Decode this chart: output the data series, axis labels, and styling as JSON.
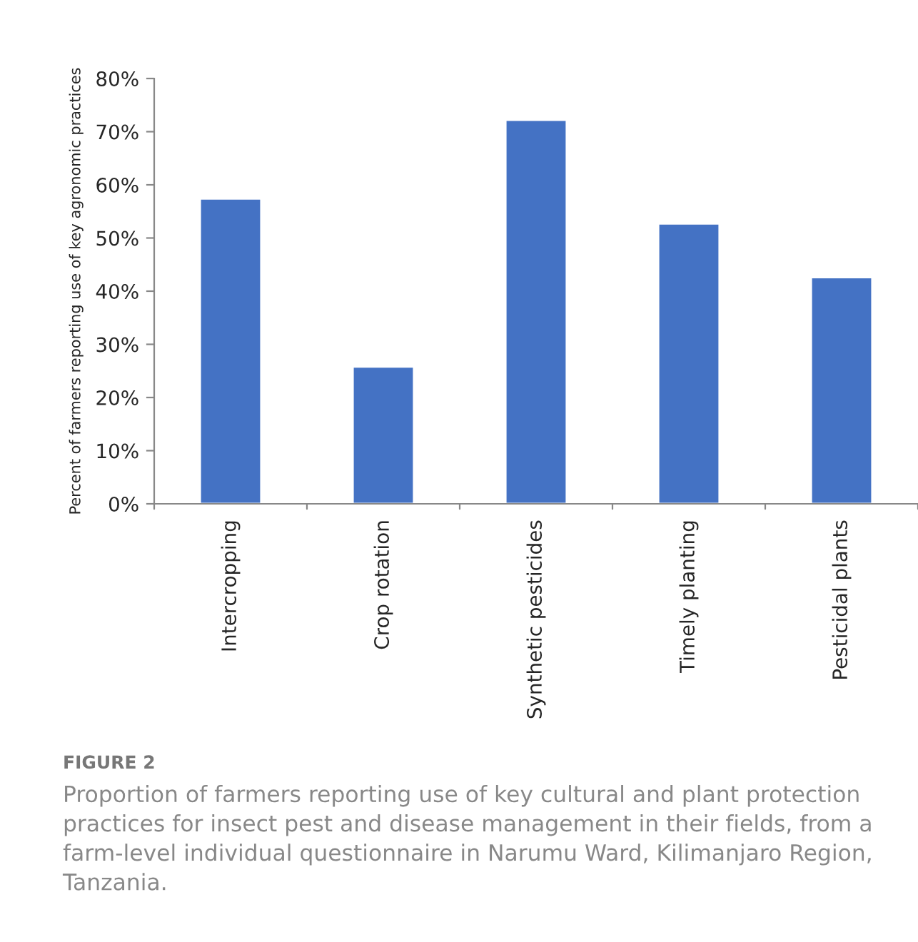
{
  "chart_data": {
    "type": "bar",
    "ylabel": "Percent of farmers reporting use of key agronomic practices",
    "categories": [
      "Intercropping",
      "Crop rotation",
      "Synthetic pesticides",
      "Timely planting",
      "Pesticidal plants"
    ],
    "values": [
      57.4,
      25.8,
      72.2,
      52.7,
      42.6
    ],
    "color": "#4472c4",
    "ylim": [
      0,
      80
    ],
    "yticks": [
      {
        "value": 0,
        "label": "0%"
      },
      {
        "value": 10,
        "label": "10%"
      },
      {
        "value": 20,
        "label": "20%"
      },
      {
        "value": 30,
        "label": "30%"
      },
      {
        "value": 40,
        "label": "40%"
      },
      {
        "value": 50,
        "label": "50%"
      },
      {
        "value": 60,
        "label": "60%"
      },
      {
        "value": 70,
        "label": "70%"
      },
      {
        "value": 80,
        "label": "80%"
      }
    ],
    "grid": false,
    "annotations": [
      "FIGURE 2",
      "Proportion of farmers reporting use of key cultural and plant protection practices for insect pest and disease management in their fields, from a farm-level individual questionnaire in Narumu Ward, Kilimanjaro Region, Tanzania."
    ]
  }
}
